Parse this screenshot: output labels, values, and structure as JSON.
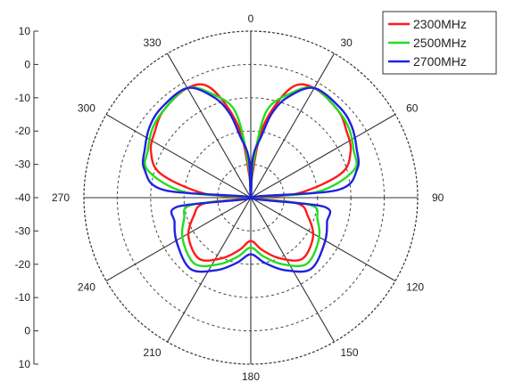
{
  "chart_data": {
    "type": "polar-line",
    "angle_labels": [
      "0",
      "30",
      "60",
      "90",
      "120",
      "150",
      "180",
      "210",
      "240",
      "270",
      "300",
      "330"
    ],
    "radial_tick_labels": [
      "10",
      "0",
      "-10",
      "-20",
      "-30",
      "-40",
      "-30",
      "-20",
      "-10",
      "0",
      "10"
    ],
    "rlim": [
      -40,
      10
    ],
    "grid": true,
    "legend_position": "top-right",
    "series": [
      {
        "name": "2300MHz",
        "color": "#ff1a1a",
        "angles": [
          0,
          4,
          10,
          20,
          30,
          45,
          55,
          65,
          75,
          85,
          90,
          97,
          108,
          122,
          140,
          155,
          168,
          180
        ],
        "values": [
          -40,
          -33,
          -18,
          -5,
          -2,
          -3,
          -5,
          -7,
          -12,
          -26,
          -40,
          -26,
          -22,
          -18,
          -16,
          -20,
          -24,
          -27
        ]
      },
      {
        "name": "2500MHz",
        "color": "#22dd22",
        "angles": [
          0,
          4,
          10,
          20,
          30,
          45,
          55,
          65,
          75,
          85,
          90,
          97,
          108,
          122,
          140,
          155,
          168,
          180
        ],
        "values": [
          -40,
          -30,
          -14,
          -7,
          -2,
          -3,
          -4,
          -6,
          -8,
          -20,
          -40,
          -22,
          -19,
          -16,
          -14,
          -18,
          -22,
          -25
        ]
      },
      {
        "name": "2700MHz",
        "color": "#1f22dd",
        "angles": [
          0,
          3,
          10,
          14,
          20,
          30,
          45,
          55,
          65,
          75,
          85,
          90,
          97,
          108,
          122,
          140,
          155,
          168,
          180
        ],
        "values": [
          -40,
          -28,
          -21,
          -14,
          -8,
          -2,
          -2,
          -3,
          -5,
          -7,
          -14,
          -40,
          -18,
          -16,
          -14,
          -12,
          -16,
          -20,
          -23
        ]
      }
    ]
  }
}
